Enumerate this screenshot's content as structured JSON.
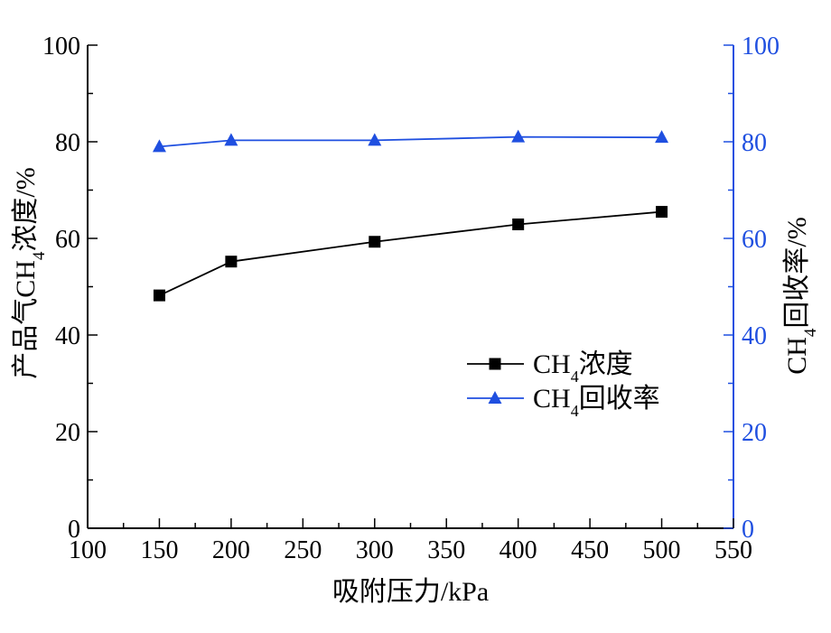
{
  "chart_data": {
    "type": "line",
    "title": "",
    "x": [
      150,
      200,
      300,
      400,
      500
    ],
    "xlim": [
      100,
      550
    ],
    "xticks": [
      100,
      150,
      200,
      250,
      300,
      350,
      400,
      450,
      500,
      550
    ],
    "xlabel": "吸附压力/kPa",
    "ylabel_left": {
      "prefix": "产品气CH",
      "sub": "4",
      "suffix": "浓度/%"
    },
    "ylabel_right": {
      "prefix": "CH",
      "sub": "4",
      "suffix": "回收率/%"
    },
    "ylim_left": [
      0,
      100
    ],
    "ylim_right": [
      0,
      100
    ],
    "yticks": [
      0,
      20,
      40,
      60,
      80,
      100
    ],
    "grid": false,
    "legend_position": "center-right",
    "series": [
      {
        "name": {
          "prefix": "CH",
          "sub": "4",
          "suffix": "浓度"
        },
        "axis": "left",
        "marker": "square",
        "color": "#000000",
        "values": [
          48.2,
          55.2,
          59.3,
          62.9,
          65.5
        ]
      },
      {
        "name": {
          "prefix": "CH",
          "sub": "4",
          "suffix": "回收率"
        },
        "axis": "right",
        "marker": "triangle",
        "color": "#1f4fe0",
        "values": [
          79.0,
          80.3,
          80.3,
          81.0,
          80.9
        ]
      }
    ]
  }
}
